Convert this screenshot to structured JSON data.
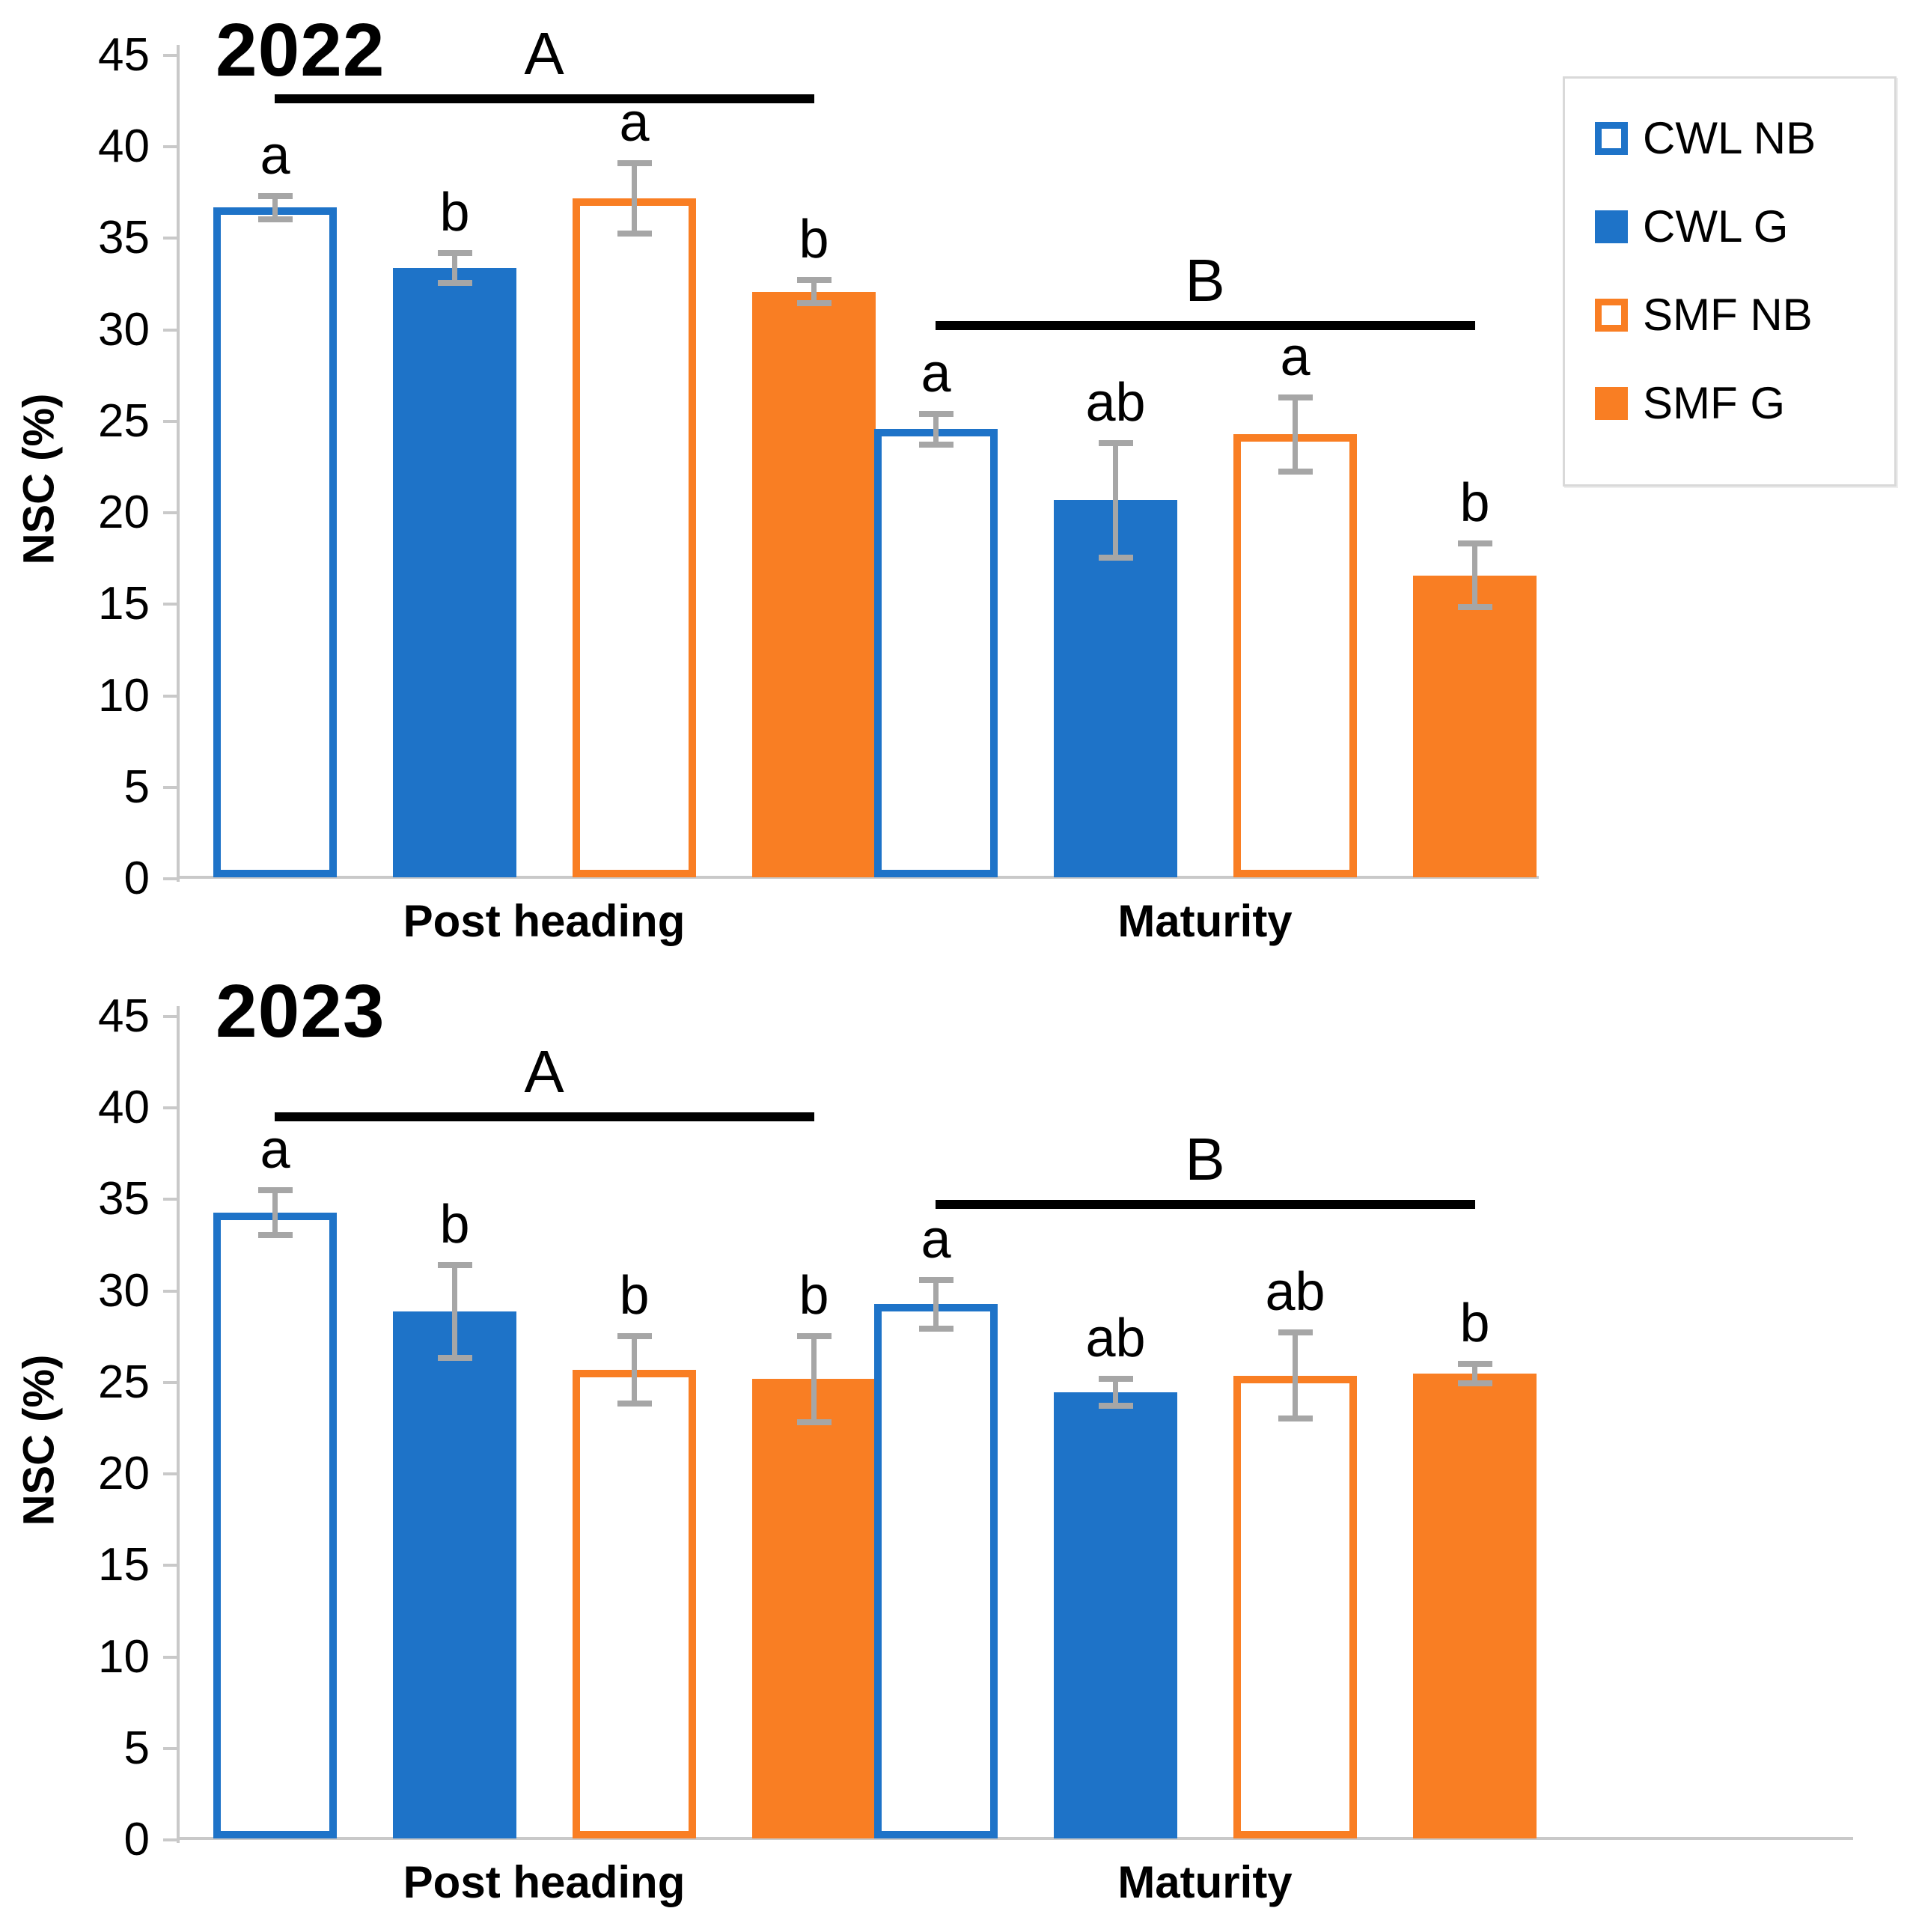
{
  "colors": {
    "blue": "#1e73c8",
    "orange": "#f97e23",
    "error_bar": "#a6a6a6",
    "axis": "#c9c9c9",
    "sig_line": "#000000"
  },
  "series": [
    {
      "name": "CWL NB",
      "color": "#1e73c8",
      "filled": false
    },
    {
      "name": "CWL G",
      "color": "#1e73c8",
      "filled": true
    },
    {
      "name": "SMF NB",
      "color": "#f97e23",
      "filled": false
    },
    {
      "name": "SMF G",
      "color": "#f97e23",
      "filled": true
    }
  ],
  "legend": {
    "items": [
      {
        "label": "CWL NB"
      },
      {
        "label": "CWL G"
      },
      {
        "label": "SMF NB"
      },
      {
        "label": "SMF G"
      }
    ]
  },
  "chart_data": [
    {
      "type": "bar",
      "title": "2022",
      "ylabel": "NSC (%)",
      "ylim": [
        0,
        45
      ],
      "ytick_step": 5,
      "grid": false,
      "legend_position": "top-right",
      "categories": [
        "Post heading",
        "Maturity"
      ],
      "series": [
        {
          "name": "CWL NB",
          "values": [
            36.6,
            24.5
          ],
          "errors": [
            0.8,
            1.0
          ],
          "letters": [
            "a",
            "a"
          ]
        },
        {
          "name": "CWL G",
          "values": [
            33.3,
            20.6
          ],
          "errors": [
            1.0,
            3.3
          ],
          "letters": [
            "b",
            "ab"
          ]
        },
        {
          "name": "SMF NB",
          "values": [
            37.1,
            24.2
          ],
          "errors": [
            2.1,
            2.2
          ],
          "letters": [
            "a",
            "a"
          ]
        },
        {
          "name": "SMF G",
          "values": [
            32.0,
            16.5
          ],
          "errors": [
            0.8,
            1.9
          ],
          "letters": [
            "b",
            "b"
          ]
        }
      ],
      "sig_lines": [
        {
          "label": "A",
          "category": "Post heading",
          "y": 42.3
        },
        {
          "label": "B",
          "category": "Maturity",
          "y": 29.9
        }
      ]
    },
    {
      "type": "bar",
      "title": "2023",
      "ylabel": "NSC (%)",
      "ylim": [
        0,
        45
      ],
      "ytick_step": 5,
      "grid": false,
      "categories": [
        "Post heading",
        "Maturity"
      ],
      "series": [
        {
          "name": "CWL NB",
          "values": [
            34.2,
            29.2
          ],
          "errors": [
            1.4,
            1.5
          ],
          "letters": [
            "a",
            "a"
          ]
        },
        {
          "name": "CWL G",
          "values": [
            28.8,
            24.4
          ],
          "errors": [
            2.7,
            0.9
          ],
          "letters": [
            "b",
            "ab"
          ]
        },
        {
          "name": "SMF NB",
          "values": [
            25.6,
            25.3
          ],
          "errors": [
            2.0,
            2.5
          ],
          "letters": [
            "b",
            "ab"
          ]
        },
        {
          "name": "SMF G",
          "values": [
            25.1,
            25.4
          ],
          "errors": [
            2.5,
            0.7
          ],
          "letters": [
            "b",
            "b"
          ]
        }
      ],
      "sig_lines": [
        {
          "label": "A",
          "category": "Post heading",
          "y": 39.2
        },
        {
          "label": "B",
          "category": "Maturity",
          "y": 34.4
        }
      ]
    }
  ]
}
